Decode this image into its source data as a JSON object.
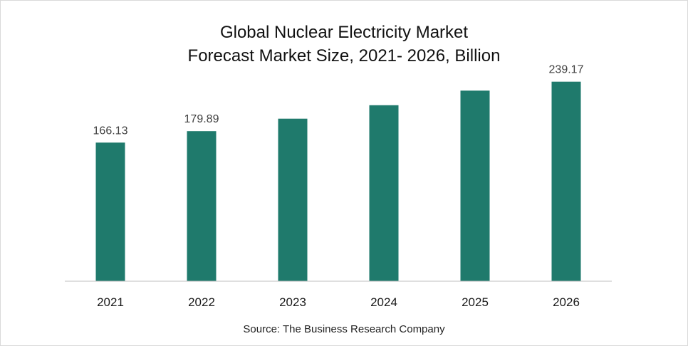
{
  "chart_data": {
    "type": "bar",
    "title": "Global Nuclear Electricity Market",
    "subtitle": "Forecast Market Size, 2021- 2026, Billion",
    "categories": [
      "2021",
      "2022",
      "2023",
      "2024",
      "2025",
      "2026"
    ],
    "values": [
      166.13,
      179.89,
      194.8,
      210.9,
      228.4,
      239.17
    ],
    "data_labels": [
      "166.13",
      "179.89",
      "",
      "",
      "",
      "239.17"
    ],
    "ylim": [
      0,
      250
    ],
    "grid": false,
    "legend": "none",
    "bar_color": "#1f7a6c",
    "axis_color": "#bfbfbf"
  },
  "source": "Source: The Business Research Company"
}
